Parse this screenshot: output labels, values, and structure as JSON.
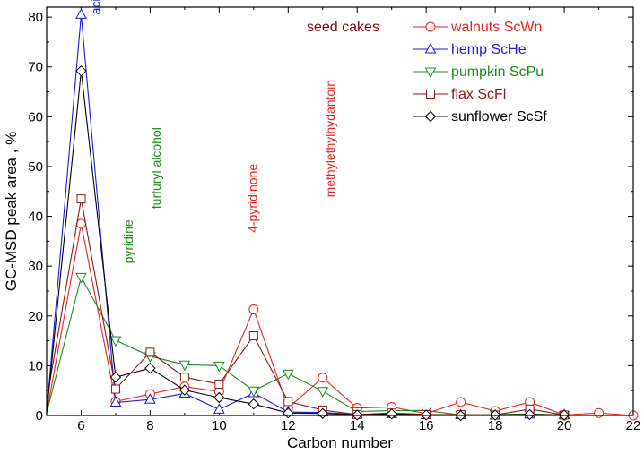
{
  "chart_data": {
    "type": "line",
    "title": "",
    "xlabel": "Carbon number",
    "ylabel": "GC-MSD peak area , %",
    "xlim": [
      5,
      22
    ],
    "ylim": [
      0,
      82
    ],
    "xticks": [
      6,
      8,
      10,
      12,
      14,
      16,
      18,
      20,
      22
    ],
    "yticks": [
      0,
      10,
      20,
      30,
      40,
      50,
      60,
      70,
      80
    ],
    "legend_title": "seed cakes",
    "legend_title_color": "#8b0000",
    "legend_position": "top-right",
    "series": [
      {
        "name": "walnuts ScWn",
        "color": "#e8231d",
        "marker": "circle",
        "points": [
          [
            5,
            0.5
          ],
          [
            6,
            38.5
          ],
          [
            7,
            2.8
          ],
          [
            8,
            4.3
          ],
          [
            9,
            5.8
          ],
          [
            10,
            4.8
          ],
          [
            11,
            21.3
          ],
          [
            12,
            1.5
          ],
          [
            13,
            7.6
          ],
          [
            14,
            1.5
          ],
          [
            15,
            1.7
          ],
          [
            16,
            0.4
          ],
          [
            17,
            2.7
          ],
          [
            18,
            0.9
          ],
          [
            19,
            2.7
          ],
          [
            20,
            0.1
          ],
          [
            21,
            0.5
          ],
          [
            22,
            0
          ]
        ]
      },
      {
        "name": "hemp ScHe",
        "color": "#1a1ae6",
        "marker": "triangle-up",
        "points": [
          [
            5,
            0.5
          ],
          [
            6,
            80.5
          ],
          [
            7,
            2.6
          ],
          [
            8,
            3.2
          ],
          [
            9,
            4.4
          ],
          [
            10,
            1.2
          ],
          [
            11,
            4.5
          ],
          [
            12,
            0.7
          ],
          [
            13,
            0.6
          ],
          [
            14,
            0.2
          ],
          [
            15,
            0.3
          ],
          [
            16,
            0.1
          ],
          [
            17,
            0.1
          ],
          [
            18,
            0
          ],
          [
            19,
            0.2
          ],
          [
            20,
            0.1
          ]
        ]
      },
      {
        "name": "pumpkin ScPu",
        "color": "#1a8c1a",
        "marker": "triangle-down",
        "points": [
          [
            5,
            0.5
          ],
          [
            6,
            27.8
          ],
          [
            7,
            15.1
          ],
          [
            8,
            11.9
          ],
          [
            9,
            10.2
          ],
          [
            10,
            10
          ],
          [
            11,
            5
          ],
          [
            12,
            8.4
          ],
          [
            13,
            4.9
          ],
          [
            14,
            0.8
          ],
          [
            15,
            1
          ],
          [
            16,
            1
          ],
          [
            17,
            0.1
          ],
          [
            18,
            0.2
          ],
          [
            19,
            0.3
          ],
          [
            20,
            0.1
          ]
        ]
      },
      {
        "name": "flax ScFl",
        "color": "#8b1a1a",
        "marker": "square",
        "points": [
          [
            5,
            3
          ],
          [
            6,
            43.5
          ],
          [
            7,
            5.3
          ],
          [
            8,
            12.7
          ],
          [
            9,
            7.7
          ],
          [
            10,
            6.3
          ],
          [
            11,
            16
          ],
          [
            12,
            2.8
          ],
          [
            13,
            1.1
          ],
          [
            14,
            0.2
          ],
          [
            15,
            0.5
          ],
          [
            16,
            0.2
          ],
          [
            17,
            0.2
          ],
          [
            18,
            0.1
          ],
          [
            19,
            1.3
          ],
          [
            20,
            0.1
          ]
        ]
      },
      {
        "name": "sunflower ScSf",
        "color": "#000000",
        "marker": "diamond",
        "points": [
          [
            5,
            0.5
          ],
          [
            6,
            69.2
          ],
          [
            7,
            7.7
          ],
          [
            8,
            9.5
          ],
          [
            9,
            5.1
          ],
          [
            10,
            3.6
          ],
          [
            11,
            2.3
          ],
          [
            12,
            0.5
          ],
          [
            13,
            0.4
          ],
          [
            14,
            0.1
          ],
          [
            15,
            0.3
          ],
          [
            16,
            0.1
          ],
          [
            17,
            0
          ],
          [
            18,
            0.1
          ],
          [
            19,
            0.2
          ],
          [
            20,
            0.1
          ]
        ]
      }
    ],
    "annotations": [
      {
        "text": "acid acetic",
        "color": "#1a1ae6",
        "x": 6.55,
        "y": 80.5,
        "rotation": -90
      },
      {
        "text": "pyridine",
        "color": "#1a8c1a",
        "x": 7.5,
        "y": 30.5,
        "rotation": -90
      },
      {
        "text": "furfuryl alcohol",
        "color": "#1a8c1a",
        "x": 8.3,
        "y": 41.5,
        "rotation": -90
      },
      {
        "text": "4-pyridinone",
        "color": "#e8231d",
        "x": 11.1,
        "y": 36.7,
        "rotation": -90
      },
      {
        "text": "methylethylhydantoin",
        "color": "#e8231d",
        "x": 13.35,
        "y": 43.8,
        "rotation": -90
      }
    ]
  }
}
